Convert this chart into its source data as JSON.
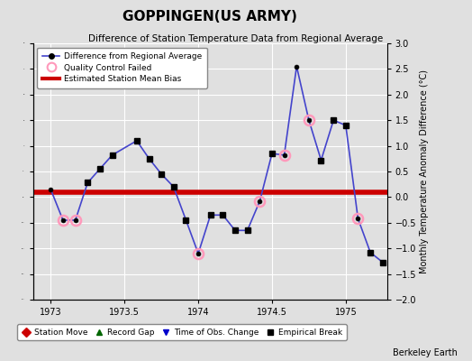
{
  "title": "GOPPINGEN(US ARMY)",
  "subtitle": "Difference of Station Temperature Data from Regional Average",
  "ylabel_right": "Monthly Temperature Anomaly Difference (°C)",
  "credit": "Berkeley Earth",
  "xlim": [
    1972.88,
    1975.28
  ],
  "ylim": [
    -2.0,
    3.0
  ],
  "yticks": [
    -2,
    -1.5,
    -1,
    -0.5,
    0,
    0.5,
    1,
    1.5,
    2,
    2.5,
    3
  ],
  "xticks": [
    1973,
    1973.5,
    1974,
    1974.5,
    1975
  ],
  "mean_bias": 0.1,
  "bias_color": "#cc0000",
  "line_color": "#4444cc",
  "marker_color": "#000000",
  "qc_fail_color": "#ff99bb",
  "background_color": "#e0e0e0",
  "grid_color": "#ffffff",
  "x_data": [
    1973.0,
    1973.083,
    1973.167,
    1973.25,
    1973.333,
    1973.417,
    1973.583,
    1973.667,
    1973.75,
    1973.833,
    1973.917,
    1974.0,
    1974.083,
    1974.167,
    1974.25,
    1974.333,
    1974.417,
    1974.5,
    1974.583,
    1974.667,
    1974.75,
    1974.833,
    1974.917,
    1975.0,
    1975.083,
    1975.167,
    1975.25
  ],
  "y_data": [
    0.15,
    -0.45,
    -0.45,
    0.28,
    0.55,
    0.82,
    1.1,
    0.75,
    0.45,
    0.2,
    -0.45,
    -1.1,
    -0.35,
    -0.35,
    -0.65,
    -0.65,
    -0.08,
    0.85,
    0.82,
    2.55,
    1.5,
    0.72,
    1.5,
    1.4,
    -0.42,
    -1.08,
    -1.27
  ],
  "qc_fail_indices": [
    1,
    2,
    11,
    16,
    18,
    20,
    24
  ],
  "empirical_break_indices": [
    3,
    4,
    5,
    6,
    7,
    8,
    9,
    10,
    12,
    13,
    14,
    15,
    17,
    21,
    22,
    23,
    25,
    26
  ],
  "legend_top": [
    {
      "label": "Difference from Regional Average",
      "color": "#4444cc",
      "marker": "o",
      "linestyle": "-"
    },
    {
      "label": "Quality Control Failed",
      "color": "#ff99bb",
      "marker": "o",
      "linestyle": "none"
    },
    {
      "label": "Estimated Station Mean Bias",
      "color": "#cc0000",
      "marker": "none",
      "linestyle": "-"
    }
  ],
  "legend_bottom": [
    {
      "label": "Station Move",
      "color": "#cc0000",
      "marker": "D"
    },
    {
      "label": "Record Gap",
      "color": "#006600",
      "marker": "^"
    },
    {
      "label": "Time of Obs. Change",
      "color": "#0000cc",
      "marker": "v"
    },
    {
      "label": "Empirical Break",
      "color": "#000000",
      "marker": "s"
    }
  ]
}
